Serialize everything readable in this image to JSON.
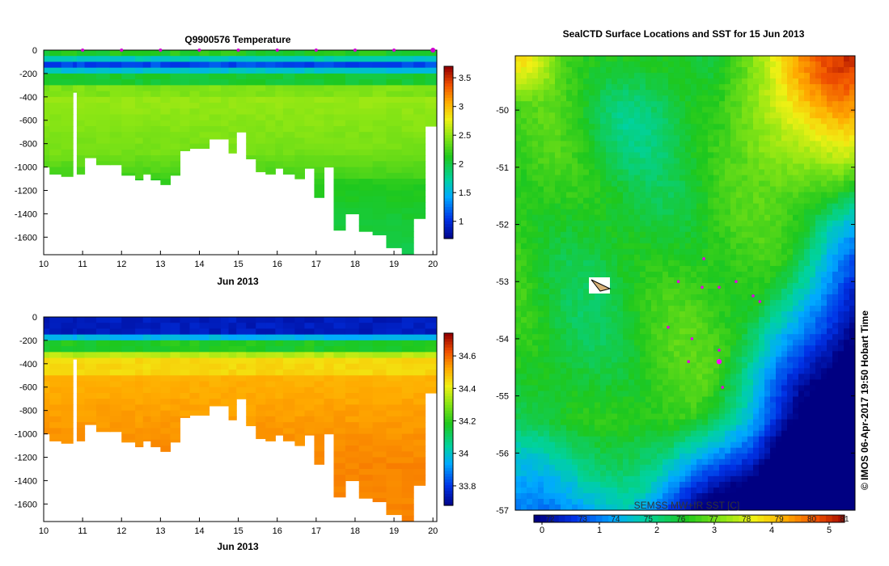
{
  "chart_data": [
    {
      "type": "heatmap",
      "title": "Q9900576  Temperature",
      "xlabel": "Jun 2013",
      "ylabel": "",
      "x_ticks": [
        10,
        11,
        12,
        13,
        14,
        15,
        16,
        17,
        18,
        19,
        20
      ],
      "x_range": [
        10,
        20.1
      ],
      "y_ticks": [
        0,
        -200,
        -400,
        -600,
        -800,
        -1000,
        -1200,
        -1400,
        -1600
      ],
      "y_range": [
        -1750,
        0
      ],
      "colorbar": {
        "ticks": [
          3.5,
          3,
          2.5,
          2,
          1.5,
          1
        ],
        "min": 0.7,
        "max": 3.7
      },
      "profile_markers_day": [
        11,
        12,
        13,
        14,
        15,
        16,
        17,
        18,
        19,
        20
      ],
      "profiles": [
        {
          "x0": 10.0,
          "x1": 10.15,
          "depth": 1000
        },
        {
          "x0": 10.15,
          "x1": 10.45,
          "depth": 1060
        },
        {
          "x0": 10.45,
          "x1": 10.75,
          "depth": 1080
        },
        {
          "x0": 10.75,
          "x1": 10.85,
          "depth": 360
        },
        {
          "x0": 10.85,
          "x1": 11.05,
          "depth": 1060
        },
        {
          "x0": 11.05,
          "x1": 11.35,
          "depth": 920
        },
        {
          "x0": 11.35,
          "x1": 11.7,
          "depth": 980
        },
        {
          "x0": 11.7,
          "x1": 12.0,
          "depth": 980
        },
        {
          "x0": 12.0,
          "x1": 12.35,
          "depth": 1070
        },
        {
          "x0": 12.35,
          "x1": 12.55,
          "depth": 1110
        },
        {
          "x0": 12.55,
          "x1": 12.75,
          "depth": 1060
        },
        {
          "x0": 12.75,
          "x1": 13.0,
          "depth": 1110
        },
        {
          "x0": 13.0,
          "x1": 13.25,
          "depth": 1150
        },
        {
          "x0": 13.25,
          "x1": 13.5,
          "depth": 1070
        },
        {
          "x0": 13.5,
          "x1": 13.75,
          "depth": 860
        },
        {
          "x0": 13.75,
          "x1": 14.0,
          "depth": 840
        },
        {
          "x0": 14.0,
          "x1": 14.25,
          "depth": 840
        },
        {
          "x0": 14.25,
          "x1": 14.55,
          "depth": 760
        },
        {
          "x0": 14.55,
          "x1": 14.75,
          "depth": 760
        },
        {
          "x0": 14.75,
          "x1": 14.95,
          "depth": 880
        },
        {
          "x0": 14.95,
          "x1": 15.2,
          "depth": 700
        },
        {
          "x0": 15.2,
          "x1": 15.45,
          "depth": 930
        },
        {
          "x0": 15.45,
          "x1": 15.7,
          "depth": 1040
        },
        {
          "x0": 15.7,
          "x1": 15.95,
          "depth": 1060
        },
        {
          "x0": 15.95,
          "x1": 16.15,
          "depth": 1010
        },
        {
          "x0": 16.15,
          "x1": 16.45,
          "depth": 1060
        },
        {
          "x0": 16.45,
          "x1": 16.7,
          "depth": 1100
        },
        {
          "x0": 16.7,
          "x1": 16.95,
          "depth": 1010
        },
        {
          "x0": 16.95,
          "x1": 17.2,
          "depth": 1260
        },
        {
          "x0": 17.2,
          "x1": 17.45,
          "depth": 1000
        },
        {
          "x0": 17.45,
          "x1": 17.75,
          "depth": 1540
        },
        {
          "x0": 17.75,
          "x1": 18.1,
          "depth": 1400
        },
        {
          "x0": 18.1,
          "x1": 18.45,
          "depth": 1550
        },
        {
          "x0": 18.45,
          "x1": 18.8,
          "depth": 1580
        },
        {
          "x0": 18.8,
          "x1": 19.2,
          "depth": 1690
        },
        {
          "x0": 19.2,
          "x1": 19.5,
          "depth": 1750
        },
        {
          "x0": 19.5,
          "x1": 19.8,
          "depth": 1440
        },
        {
          "x0": 19.8,
          "x1": 20.1,
          "depth": 650
        }
      ]
    },
    {
      "type": "heatmap",
      "title": "",
      "xlabel": "Jun 2013",
      "ylabel": "",
      "x_ticks": [
        10,
        11,
        12,
        13,
        14,
        15,
        16,
        17,
        18,
        19,
        20
      ],
      "x_range": [
        10,
        20.1
      ],
      "y_ticks": [
        0,
        -200,
        -400,
        -600,
        -800,
        -1000,
        -1200,
        -1400,
        -1600
      ],
      "y_range": [
        -1750,
        0
      ],
      "colorbar": {
        "ticks": [
          34.6,
          34.4,
          34.2,
          34,
          33.8
        ],
        "min": 33.68,
        "max": 34.74
      }
    },
    {
      "type": "heatmap",
      "title": "SealCTD Surface Locations and SST for 15 Jun 2013",
      "xlabel": "",
      "ylabel": "",
      "y_ticks": [
        -50,
        -51,
        -52,
        -53,
        -54,
        -55,
        -56,
        -57
      ],
      "y_range": [
        -57,
        -49.05
      ],
      "colorbar_bottom_ticks": [
        0,
        1,
        2,
        3,
        4,
        5
      ],
      "colorbar_top_ticks": [
        "72",
        "73",
        "74",
        "75",
        "76",
        "77",
        "78",
        "79",
        "80",
        "81"
      ],
      "colorbar_label": "SEMSS MW+IR SST [C]",
      "seal_positions": [
        {
          "lon": 0.555,
          "lat": -52.6
        },
        {
          "lon": 0.48,
          "lat": -53.0
        },
        {
          "lon": 0.55,
          "lat": -53.1
        },
        {
          "lon": 0.6,
          "lat": -53.1
        },
        {
          "lon": 0.65,
          "lat": -53.0
        },
        {
          "lon": 0.7,
          "lat": -53.25
        },
        {
          "lon": 0.72,
          "lat": -53.35
        },
        {
          "lon": 0.45,
          "lat": -53.8
        },
        {
          "lon": 0.52,
          "lat": -54.0
        },
        {
          "lon": 0.6,
          "lat": -54.2
        },
        {
          "lon": 0.51,
          "lat": -54.4
        },
        {
          "lon": 0.61,
          "lat": -54.85
        }
      ],
      "latest_position": {
        "lon": 0.6,
        "lat": -54.4
      }
    }
  ],
  "watermark": "© IMOS 06-Apr-2017 19:50 Hobart Time"
}
